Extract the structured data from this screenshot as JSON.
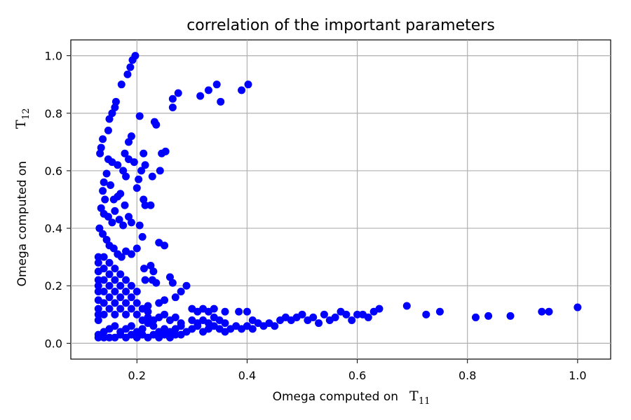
{
  "chart_data": {
    "type": "scatter",
    "title": "correlation of the important parameters",
    "xlabel": "Omega computed on",
    "xlabel_symbol": "T",
    "xlabel_subscript": "11",
    "ylabel": "Omega computed on",
    "ylabel_symbol": "T",
    "ylabel_subscript": "12",
    "xlim": [
      0.08,
      1.06
    ],
    "ylim": [
      -0.055,
      1.055
    ],
    "xticks": [
      0.2,
      0.4,
      0.6,
      0.8,
      1.0
    ],
    "xtick_labels": [
      "0.2",
      "0.4",
      "0.6",
      "0.8",
      "1.0"
    ],
    "yticks": [
      0.0,
      0.2,
      0.4,
      0.6,
      0.8,
      1.0
    ],
    "ytick_labels": [
      "0.0",
      "0.2",
      "0.4",
      "0.6",
      "0.8",
      "1.0"
    ],
    "grid": true,
    "marker_color": "#0000ff",
    "points": [
      [
        0.197,
        1.0
      ],
      [
        0.192,
        0.985
      ],
      [
        0.188,
        0.96
      ],
      [
        0.183,
        0.935
      ],
      [
        0.172,
        0.9
      ],
      [
        0.162,
        0.84
      ],
      [
        0.16,
        0.82
      ],
      [
        0.155,
        0.8
      ],
      [
        0.15,
        0.78
      ],
      [
        0.148,
        0.74
      ],
      [
        0.138,
        0.71
      ],
      [
        0.135,
        0.68
      ],
      [
        0.133,
        0.66
      ],
      [
        0.148,
        0.64
      ],
      [
        0.155,
        0.63
      ],
      [
        0.165,
        0.62
      ],
      [
        0.175,
        0.6
      ],
      [
        0.18,
        0.58
      ],
      [
        0.145,
        0.59
      ],
      [
        0.14,
        0.56
      ],
      [
        0.152,
        0.55
      ],
      [
        0.138,
        0.53
      ],
      [
        0.142,
        0.5
      ],
      [
        0.158,
        0.5
      ],
      [
        0.165,
        0.51
      ],
      [
        0.17,
        0.52
      ],
      [
        0.178,
        0.48
      ],
      [
        0.135,
        0.47
      ],
      [
        0.14,
        0.45
      ],
      [
        0.148,
        0.44
      ],
      [
        0.155,
        0.42
      ],
      [
        0.16,
        0.46
      ],
      [
        0.168,
        0.43
      ],
      [
        0.175,
        0.41
      ],
      [
        0.185,
        0.44
      ],
      [
        0.19,
        0.42
      ],
      [
        0.132,
        0.4
      ],
      [
        0.138,
        0.38
      ],
      [
        0.145,
        0.36
      ],
      [
        0.15,
        0.34
      ],
      [
        0.158,
        0.33
      ],
      [
        0.165,
        0.31
      ],
      [
        0.172,
        0.3
      ],
      [
        0.18,
        0.32
      ],
      [
        0.19,
        0.31
      ],
      [
        0.2,
        0.33
      ],
      [
        0.185,
        0.7
      ],
      [
        0.19,
        0.72
      ],
      [
        0.178,
        0.66
      ],
      [
        0.185,
        0.64
      ],
      [
        0.195,
        0.63
      ],
      [
        0.205,
        0.79
      ],
      [
        0.212,
        0.66
      ],
      [
        0.215,
        0.62
      ],
      [
        0.208,
        0.6
      ],
      [
        0.203,
        0.57
      ],
      [
        0.2,
        0.54
      ],
      [
        0.212,
        0.5
      ],
      [
        0.215,
        0.48
      ],
      [
        0.225,
        0.48
      ],
      [
        0.232,
        0.77
      ],
      [
        0.235,
        0.76
      ],
      [
        0.228,
        0.58
      ],
      [
        0.242,
        0.6
      ],
      [
        0.245,
        0.66
      ],
      [
        0.252,
        0.667
      ],
      [
        0.205,
        0.41
      ],
      [
        0.21,
        0.37
      ],
      [
        0.24,
        0.35
      ],
      [
        0.25,
        0.34
      ],
      [
        0.225,
        0.27
      ],
      [
        0.213,
        0.26
      ],
      [
        0.23,
        0.25
      ],
      [
        0.215,
        0.22
      ],
      [
        0.228,
        0.22
      ],
      [
        0.235,
        0.21
      ],
      [
        0.26,
        0.23
      ],
      [
        0.265,
        0.21
      ],
      [
        0.29,
        0.2
      ],
      [
        0.28,
        0.18
      ],
      [
        0.27,
        0.16
      ],
      [
        0.25,
        0.15
      ],
      [
        0.24,
        0.14
      ],
      [
        0.22,
        0.13
      ],
      [
        0.265,
        0.85
      ],
      [
        0.265,
        0.82
      ],
      [
        0.275,
        0.87
      ],
      [
        0.315,
        0.86
      ],
      [
        0.33,
        0.88
      ],
      [
        0.345,
        0.9
      ],
      [
        0.352,
        0.84
      ],
      [
        0.39,
        0.88
      ],
      [
        0.402,
        0.9
      ],
      [
        0.3,
        0.12
      ],
      [
        0.31,
        0.11
      ],
      [
        0.32,
        0.12
      ],
      [
        0.33,
        0.11
      ],
      [
        0.34,
        0.12
      ],
      [
        0.36,
        0.11
      ],
      [
        0.385,
        0.11
      ],
      [
        0.4,
        0.11
      ],
      [
        0.41,
        0.08
      ],
      [
        0.42,
        0.07
      ],
      [
        0.43,
        0.06
      ],
      [
        0.44,
        0.07
      ],
      [
        0.45,
        0.06
      ],
      [
        0.46,
        0.08
      ],
      [
        0.47,
        0.09
      ],
      [
        0.48,
        0.08
      ],
      [
        0.49,
        0.09
      ],
      [
        0.5,
        0.1
      ],
      [
        0.51,
        0.08
      ],
      [
        0.52,
        0.09
      ],
      [
        0.53,
        0.07
      ],
      [
        0.54,
        0.1
      ],
      [
        0.55,
        0.08
      ],
      [
        0.56,
        0.09
      ],
      [
        0.57,
        0.11
      ],
      [
        0.58,
        0.1
      ],
      [
        0.59,
        0.08
      ],
      [
        0.6,
        0.1
      ],
      [
        0.61,
        0.1
      ],
      [
        0.62,
        0.09
      ],
      [
        0.63,
        0.11
      ],
      [
        0.64,
        0.12
      ],
      [
        0.69,
        0.13
      ],
      [
        0.725,
        0.1
      ],
      [
        0.75,
        0.11
      ],
      [
        0.815,
        0.09
      ],
      [
        0.838,
        0.095
      ],
      [
        0.878,
        0.095
      ],
      [
        0.935,
        0.11
      ],
      [
        0.948,
        0.11
      ],
      [
        1.0,
        0.125
      ],
      [
        0.3,
        0.05
      ],
      [
        0.31,
        0.06
      ],
      [
        0.32,
        0.04
      ],
      [
        0.33,
        0.05
      ],
      [
        0.34,
        0.06
      ],
      [
        0.35,
        0.05
      ],
      [
        0.36,
        0.04
      ],
      [
        0.37,
        0.05
      ],
      [
        0.38,
        0.06
      ],
      [
        0.39,
        0.05
      ],
      [
        0.4,
        0.06
      ],
      [
        0.41,
        0.05
      ],
      [
        0.3,
        0.08
      ],
      [
        0.31,
        0.07
      ],
      [
        0.32,
        0.08
      ],
      [
        0.33,
        0.07
      ],
      [
        0.34,
        0.09
      ],
      [
        0.35,
        0.08
      ],
      [
        0.36,
        0.07
      ],
      [
        0.28,
        0.06
      ],
      [
        0.27,
        0.05
      ],
      [
        0.26,
        0.04
      ],
      [
        0.25,
        0.05
      ],
      [
        0.24,
        0.04
      ],
      [
        0.23,
        0.06
      ],
      [
        0.22,
        0.07
      ],
      [
        0.21,
        0.05
      ],
      [
        0.2,
        0.04
      ],
      [
        0.19,
        0.06
      ],
      [
        0.18,
        0.05
      ],
      [
        0.17,
        0.04
      ],
      [
        0.16,
        0.06
      ],
      [
        0.15,
        0.05
      ],
      [
        0.14,
        0.04
      ],
      [
        0.13,
        0.03
      ],
      [
        0.13,
        0.02
      ],
      [
        0.14,
        0.02
      ],
      [
        0.15,
        0.02
      ],
      [
        0.16,
        0.02
      ],
      [
        0.17,
        0.03
      ],
      [
        0.18,
        0.02
      ],
      [
        0.19,
        0.03
      ],
      [
        0.2,
        0.02
      ],
      [
        0.21,
        0.03
      ],
      [
        0.22,
        0.02
      ],
      [
        0.23,
        0.03
      ],
      [
        0.24,
        0.02
      ],
      [
        0.25,
        0.03
      ],
      [
        0.26,
        0.02
      ],
      [
        0.27,
        0.03
      ],
      [
        0.28,
        0.03
      ],
      [
        0.29,
        0.04
      ],
      [
        0.13,
        0.08
      ],
      [
        0.13,
        0.1
      ],
      [
        0.13,
        0.12
      ],
      [
        0.13,
        0.15
      ],
      [
        0.13,
        0.18
      ],
      [
        0.13,
        0.2
      ],
      [
        0.13,
        0.22
      ],
      [
        0.13,
        0.25
      ],
      [
        0.13,
        0.28
      ],
      [
        0.13,
        0.3
      ],
      [
        0.14,
        0.1
      ],
      [
        0.14,
        0.14
      ],
      [
        0.14,
        0.18
      ],
      [
        0.14,
        0.22
      ],
      [
        0.14,
        0.26
      ],
      [
        0.14,
        0.3
      ],
      [
        0.15,
        0.12
      ],
      [
        0.15,
        0.16
      ],
      [
        0.15,
        0.2
      ],
      [
        0.15,
        0.24
      ],
      [
        0.15,
        0.28
      ],
      [
        0.16,
        0.1
      ],
      [
        0.16,
        0.14
      ],
      [
        0.16,
        0.18
      ],
      [
        0.16,
        0.22
      ],
      [
        0.16,
        0.26
      ],
      [
        0.17,
        0.12
      ],
      [
        0.17,
        0.16
      ],
      [
        0.17,
        0.2
      ],
      [
        0.17,
        0.24
      ],
      [
        0.18,
        0.1
      ],
      [
        0.18,
        0.14
      ],
      [
        0.18,
        0.18
      ],
      [
        0.18,
        0.22
      ],
      [
        0.19,
        0.12
      ],
      [
        0.19,
        0.16
      ],
      [
        0.19,
        0.2
      ],
      [
        0.2,
        0.1
      ],
      [
        0.2,
        0.14
      ],
      [
        0.2,
        0.18
      ],
      [
        0.21,
        0.08
      ],
      [
        0.21,
        0.12
      ],
      [
        0.22,
        0.09
      ],
      [
        0.22,
        0.11
      ],
      [
        0.23,
        0.08
      ],
      [
        0.24,
        0.09
      ],
      [
        0.25,
        0.1
      ],
      [
        0.26,
        0.08
      ],
      [
        0.27,
        0.09
      ],
      [
        0.28,
        0.07
      ]
    ]
  }
}
